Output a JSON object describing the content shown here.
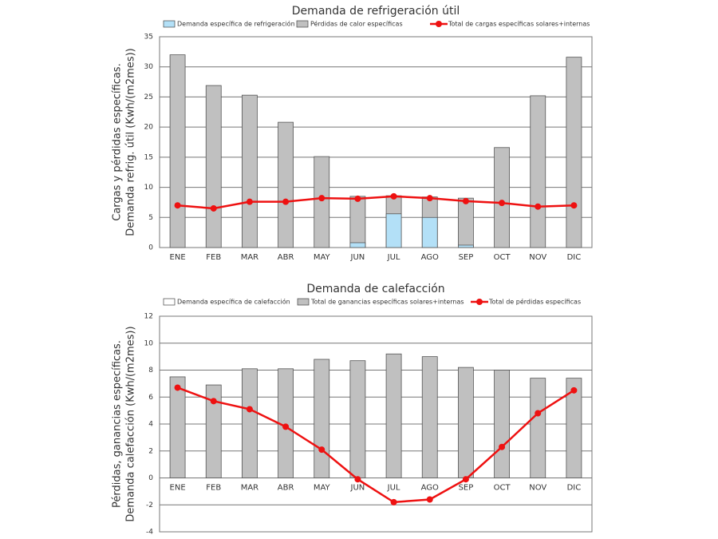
{
  "chart_data": [
    {
      "type": "bar",
      "title": "Demanda de refrigeración útil",
      "ylabel": [
        "Cargas y pérdidas específicas.",
        "Demanda refrig. útil (Kwh/(m2mes))"
      ],
      "categories": [
        "ENE",
        "FEB",
        "MAR",
        "ABR",
        "MAY",
        "JUN",
        "JUL",
        "AGO",
        "SEP",
        "OCT",
        "NOV",
        "DIC"
      ],
      "series": [
        {
          "name": "Demanda específica de refrigeración",
          "type": "bar",
          "color": "#b3e0f7",
          "values": [
            0,
            0,
            0,
            0,
            0,
            0.8,
            5.6,
            5.0,
            0.4,
            0,
            0,
            0
          ]
        },
        {
          "name": "Pérdidas de calor específicas",
          "type": "bar",
          "color": "#c0c0c0",
          "values": [
            32.0,
            26.9,
            25.3,
            20.8,
            15.1,
            8.5,
            8.6,
            8.4,
            8.2,
            16.6,
            25.2,
            31.6
          ]
        },
        {
          "name": "Total de cargas específicas solares+internas",
          "type": "line",
          "color": "#ee1111",
          "values": [
            7.0,
            6.5,
            7.6,
            7.6,
            8.2,
            8.1,
            8.5,
            8.2,
            7.7,
            7.4,
            6.8,
            7.0
          ]
        }
      ],
      "ylim": [
        0,
        35
      ],
      "yticks": [
        0,
        5,
        10,
        15,
        20,
        25,
        30,
        35
      ],
      "grid": true
    },
    {
      "type": "bar",
      "title": "Demanda de calefacción",
      "ylabel": [
        "Pérdidas, ganancias específicas.",
        "Demanda calefacción (Kwh/(m2mes))"
      ],
      "categories": [
        "ENE",
        "FEB",
        "MAR",
        "ABR",
        "MAY",
        "JUN",
        "JUL",
        "AGO",
        "SEP",
        "OCT",
        "NOV",
        "DIC"
      ],
      "series": [
        {
          "name": "Demanda específica de calefacción",
          "type": "bar",
          "color": "#ffffff",
          "values": [
            0,
            0,
            0,
            0,
            0,
            0,
            0,
            0,
            0,
            0,
            0,
            0
          ]
        },
        {
          "name": "Total de ganancias  específicas solares+internas",
          "type": "bar",
          "color": "#c0c0c0",
          "values": [
            7.5,
            6.9,
            8.1,
            8.1,
            8.8,
            8.7,
            9.2,
            9.0,
            8.2,
            8.0,
            7.4,
            7.4
          ]
        },
        {
          "name": "Total de pérdidas específicas",
          "type": "line",
          "color": "#ee1111",
          "values": [
            6.7,
            5.7,
            5.1,
            3.8,
            2.1,
            -0.1,
            -1.8,
            -1.6,
            -0.1,
            2.3,
            4.8,
            6.5
          ]
        }
      ],
      "ylim": [
        -4,
        12
      ],
      "yticks": [
        -4,
        -2,
        0,
        2,
        4,
        6,
        8,
        10,
        12
      ],
      "grid": true
    }
  ]
}
